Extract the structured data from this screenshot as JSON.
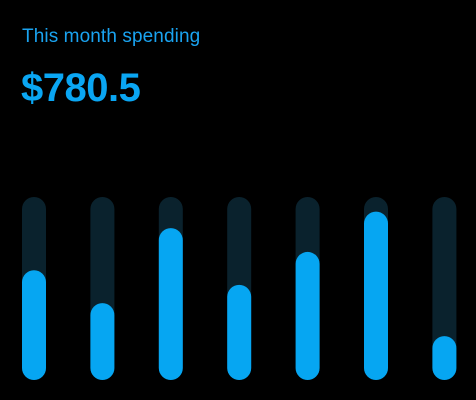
{
  "header": {
    "subtitle": "This month spending",
    "amount": "$780.5"
  },
  "colors": {
    "background": "#000000",
    "track": "#0a222d",
    "bar": "#06a6f2",
    "text_accent": "#1aa3f0"
  },
  "chart_data": {
    "type": "bar",
    "orientation": "vertical",
    "categories": [
      "",
      "",
      "",
      "",
      "",
      "",
      ""
    ],
    "values": [
      60,
      42,
      83,
      52,
      70,
      92,
      24
    ],
    "ylim": [
      0,
      100
    ],
    "grid": false,
    "legend": "none",
    "title": "",
    "xlabel": "",
    "ylabel": ""
  }
}
